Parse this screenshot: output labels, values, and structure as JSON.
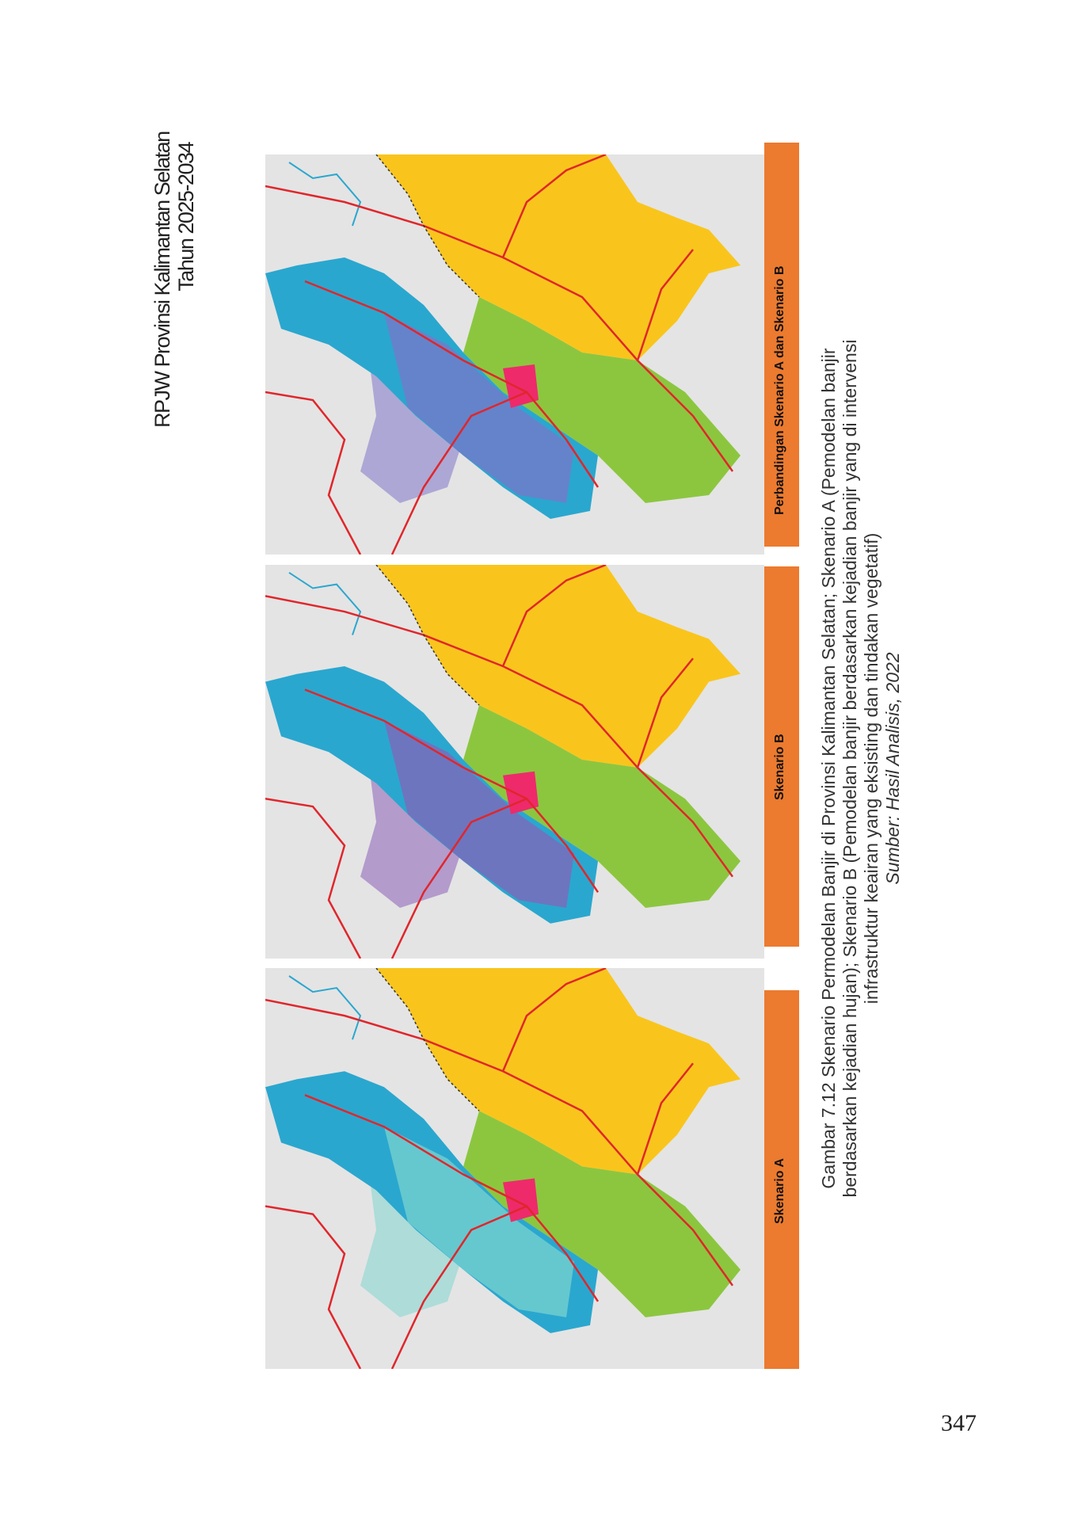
{
  "header": {
    "line1": "RPJW Provinsi Kalimantan Selatan",
    "line2": "Tahun 2025-2034"
  },
  "panels": [
    {
      "label": "Perbandingan Skenario A dan Skenario B",
      "overlay": "#7f74c8"
    },
    {
      "label": "Skenario B",
      "overlay": "#8a5fb8"
    },
    {
      "label": "Skenario A",
      "overlay": "#7fd6cf"
    }
  ],
  "colors": {
    "label_bg": "#ec7a2f",
    "yellow": "#f9c51c",
    "green": "#8cc63f",
    "blue": "#2aa7cf",
    "pink": "#ee2a6b",
    "road": "#e0262b"
  },
  "caption": {
    "line1": "Gambar 7.12 Skenario Permodelan Banjir di Provinsi Kalimantan Selatan; Skenario A (Pemodelan banjir",
    "line2": "berdasarkan kejadian hujan); Skenario B (Pemodelan banjir berdasarkan kejadian banjir yang di intervensi",
    "line3": "infrastruktur keairan yang eksisting dan tindakan vegetatif)",
    "source": "Sumber: Hasil Analisis, 2022"
  },
  "page_number": "347"
}
